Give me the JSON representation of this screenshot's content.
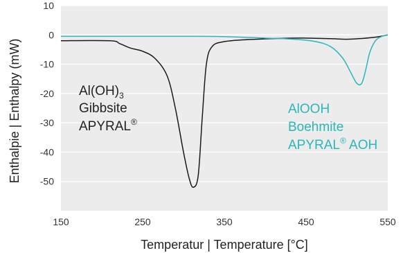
{
  "chart_data": {
    "type": "line",
    "title": "",
    "xlabel": "Temperatur  |  Temperature [°C]",
    "ylabel": "Enthalpie  |  Enthalpy (mW)",
    "xlim": [
      150,
      550
    ],
    "ylim": [
      -60,
      10
    ],
    "x_ticks": [
      150,
      250,
      350,
      450,
      550
    ],
    "y_ticks": [
      10,
      0,
      -10,
      -20,
      -30,
      -40,
      -50
    ],
    "grid": "horizontal",
    "legend": "none",
    "series": [
      {
        "color": "#1a1a1a",
        "points": [
          [
            150,
            -2
          ],
          [
            210,
            -2
          ],
          [
            222,
            -3
          ],
          [
            235,
            -4.5
          ],
          [
            250,
            -5.6
          ],
          [
            265,
            -8
          ],
          [
            280,
            -14
          ],
          [
            290,
            -25
          ],
          [
            300,
            -40
          ],
          [
            307,
            -49
          ],
          [
            312,
            -52
          ],
          [
            318,
            -48
          ],
          [
            323,
            -28
          ],
          [
            328,
            -10
          ],
          [
            335,
            -4
          ],
          [
            350,
            -2.3
          ],
          [
            380,
            -1.6
          ],
          [
            420,
            -1.2
          ],
          [
            450,
            -1.1
          ],
          [
            480,
            -1.3
          ],
          [
            500,
            -1.5
          ],
          [
            520,
            -1.2
          ],
          [
            535,
            -0.8
          ],
          [
            545,
            -0.3
          ],
          [
            550,
            0
          ]
        ]
      },
      {
        "color": "#2ab7b9",
        "points": [
          [
            150,
            -0.5
          ],
          [
            300,
            -0.5
          ],
          [
            350,
            -0.6
          ],
          [
            400,
            -1.1
          ],
          [
            430,
            -1.4
          ],
          [
            460,
            -2.2
          ],
          [
            480,
            -4
          ],
          [
            495,
            -8
          ],
          [
            505,
            -13
          ],
          [
            512,
            -16.5
          ],
          [
            518,
            -16.6
          ],
          [
            523,
            -12
          ],
          [
            528,
            -6
          ],
          [
            535,
            -2
          ],
          [
            542,
            -0.6
          ],
          [
            550,
            0
          ]
        ]
      }
    ],
    "annotations": [
      {
        "color": "#222222",
        "lines": [
          {
            "text": "Al(OH)",
            "sub": "3"
          },
          {
            "text": "Gibbsite"
          },
          {
            "text": "APYRAL",
            "sup": "®"
          }
        ]
      },
      {
        "color": "#2ab7b9",
        "lines": [
          {
            "text": "AlOOH"
          },
          {
            "text": "Boehmite"
          },
          {
            "text": "APYRAL",
            "sup": "®",
            "tail": " AOH"
          }
        ]
      }
    ]
  }
}
